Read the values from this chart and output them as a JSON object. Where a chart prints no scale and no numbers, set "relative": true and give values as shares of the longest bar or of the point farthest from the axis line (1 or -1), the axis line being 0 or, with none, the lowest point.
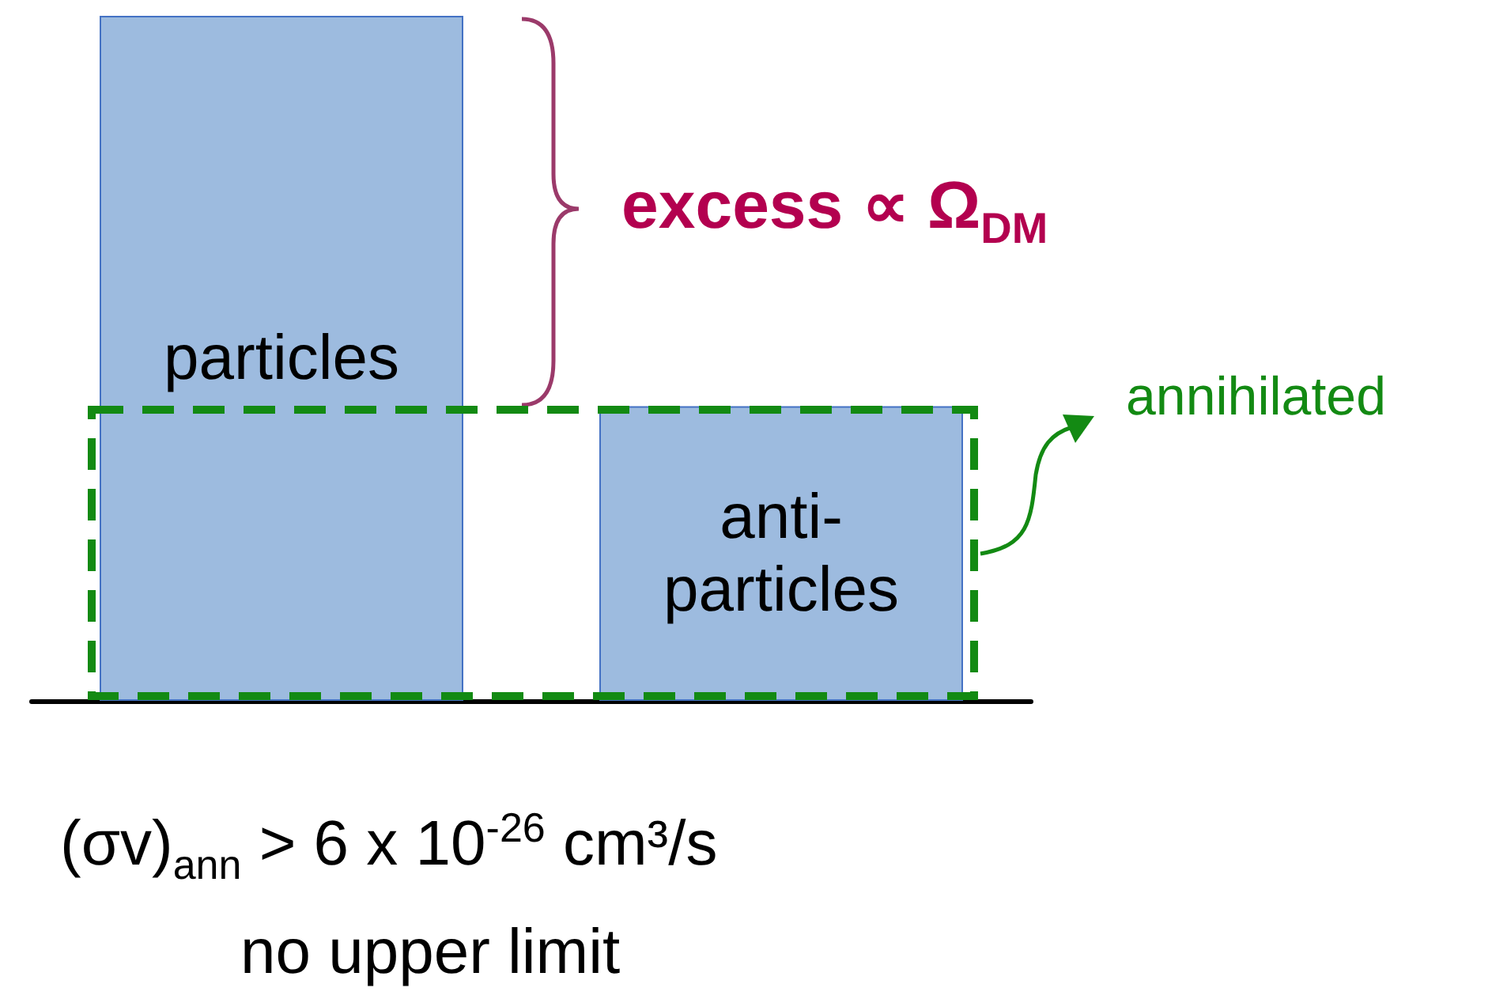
{
  "chart_data": {
    "type": "bar",
    "relative": true,
    "categories": [
      "particles",
      "anti-particles"
    ],
    "values": [
      1,
      0.43
    ],
    "color": "#9dbbdf",
    "annotations": [
      "excess ∝ Ω$_{DM}$",
      "annihilated",
      "(σv)$_{ann}$ >  6 x 10$^{-26}$ cm³/s",
      "no upper limit"
    ]
  }
}
